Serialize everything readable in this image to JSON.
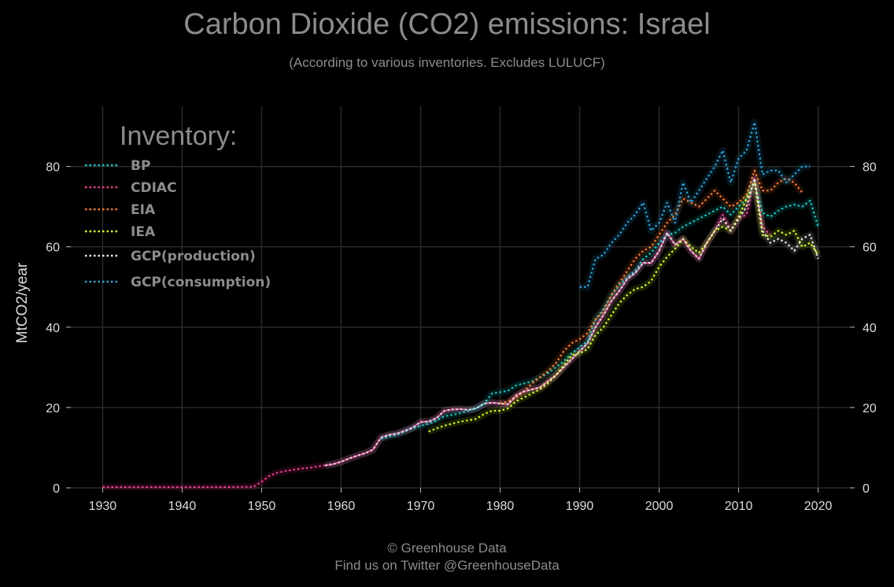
{
  "chart_data": {
    "type": "line",
    "title": "Carbon Dioxide (CO2) emissions: Israel",
    "subtitle": "(According to various inventories. Excludes LULUCF)",
    "ylabel": "MtCO2/year",
    "xlabel": "",
    "xlim": [
      1926,
      2024
    ],
    "ylim": [
      0,
      95
    ],
    "xticks": [
      1930,
      1940,
      1950,
      1960,
      1970,
      1980,
      1990,
      2000,
      2010,
      2020
    ],
    "yticks": [
      0,
      20,
      40,
      60,
      80
    ],
    "grid": true,
    "legend": {
      "title": "Inventory:",
      "placement": "top-left"
    },
    "series": [
      {
        "name": "CDIAC",
        "color": "#ff3399",
        "x": [
          1930,
          1935,
          1940,
          1945,
          1949,
          1950,
          1951,
          1952,
          1953,
          1954,
          1955,
          1956,
          1957,
          1958,
          1959,
          1960,
          1961,
          1962,
          1963,
          1964,
          1965,
          1966,
          1967,
          1968,
          1969,
          1970,
          1971,
          1972,
          1973,
          1974,
          1975,
          1976,
          1977,
          1978,
          1979,
          1980,
          1981,
          1982,
          1983,
          1984,
          1985,
          1986,
          1987,
          1988,
          1989,
          1990,
          1991,
          1992,
          1993,
          1994,
          1995,
          1996,
          1997,
          1998,
          1999,
          2000,
          2001,
          2002,
          2003,
          2004,
          2005,
          2006,
          2007,
          2008,
          2009,
          2010,
          2011,
          2012,
          2013,
          2014
        ],
        "y": [
          0.2,
          0.2,
          0.2,
          0.2,
          0.3,
          1.5,
          3,
          3.8,
          4.2,
          4.5,
          4.8,
          5.0,
          5.3,
          5.6,
          5.9,
          6.5,
          7.3,
          8,
          8.6,
          9.5,
          12.5,
          13.2,
          13.5,
          14.2,
          15.0,
          16.4,
          16.5,
          17.4,
          19.2,
          19.5,
          19.6,
          19.4,
          19.8,
          21.0,
          21.2,
          21,
          20.8,
          23,
          24,
          24.5,
          25,
          26.5,
          28,
          30,
          32,
          34,
          36,
          40,
          43,
          46.5,
          49,
          52,
          53.5,
          56,
          56,
          59,
          63.5,
          60.5,
          62,
          59,
          57,
          61,
          64,
          68,
          64,
          67,
          68,
          77,
          65,
          63
        ]
      },
      {
        "name": "BP",
        "color": "#00cccc",
        "x": [
          1965,
          1966,
          1967,
          1968,
          1969,
          1970,
          1971,
          1972,
          1973,
          1974,
          1975,
          1976,
          1977,
          1978,
          1979,
          1980,
          1981,
          1982,
          1983,
          1984,
          1985,
          1986,
          1987,
          1988,
          1989,
          1990,
          1991,
          1992,
          1993,
          1994,
          1995,
          1996,
          1997,
          1998,
          1999,
          2000,
          2001,
          2002,
          2003,
          2004,
          2005,
          2006,
          2007,
          2008,
          2009,
          2010,
          2011,
          2012,
          2013,
          2014,
          2015,
          2016,
          2017,
          2018,
          2019,
          2020
        ],
        "y": [
          12.2,
          12.8,
          13.2,
          14,
          14.8,
          15.4,
          16.0,
          16.8,
          17.8,
          18.2,
          18.6,
          19.2,
          19.8,
          21,
          23.5,
          23.8,
          24.2,
          25.5,
          26,
          26.5,
          27.5,
          28.5,
          30,
          31.5,
          33.5,
          35,
          36.5,
          42,
          44.5,
          48,
          50.5,
          52.5,
          54,
          57,
          58.5,
          61,
          63,
          63.5,
          65,
          66,
          67,
          68,
          69,
          70,
          68,
          70,
          72,
          76,
          68.5,
          67.5,
          69,
          70,
          70.5,
          70,
          71.5,
          65
        ]
      },
      {
        "name": "EIA",
        "color": "#ff7722",
        "x": [
          1980,
          1981,
          1982,
          1983,
          1984,
          1985,
          1986,
          1987,
          1988,
          1989,
          1990,
          1991,
          1992,
          1993,
          1994,
          1995,
          1996,
          1997,
          1998,
          1999,
          2000,
          2001,
          2002,
          2003,
          2004,
          2005,
          2006,
          2007,
          2008,
          2009,
          2010,
          2011,
          2012,
          2013,
          2014,
          2015,
          2016,
          2017,
          2018
        ],
        "y": [
          21,
          21.5,
          22.5,
          24,
          26,
          27.5,
          29,
          31,
          34,
          36,
          37,
          38.5,
          42,
          44,
          48,
          51,
          54,
          57,
          59,
          60,
          63,
          66,
          68,
          72,
          71,
          70,
          72,
          74,
          72,
          70,
          71,
          73,
          79,
          74,
          74,
          76,
          77,
          76,
          73.5
        ]
      },
      {
        "name": "IEA",
        "color": "#ccff00",
        "x": [
          1971,
          1972,
          1973,
          1974,
          1975,
          1976,
          1977,
          1978,
          1979,
          1980,
          1981,
          1982,
          1983,
          1984,
          1985,
          1986,
          1987,
          1988,
          1989,
          1990,
          1991,
          1992,
          1993,
          1994,
          1995,
          1996,
          1997,
          1998,
          1999,
          2000,
          2001,
          2002,
          2003,
          2004,
          2005,
          2006,
          2007,
          2008,
          2009,
          2010,
          2011,
          2012,
          2013,
          2014,
          2015,
          2016,
          2017,
          2018,
          2019,
          2020
        ],
        "y": [
          14,
          14.8,
          15.5,
          16,
          16.5,
          16.8,
          17.2,
          18.4,
          19.2,
          19.2,
          19.8,
          21.5,
          22.5,
          23.5,
          24.5,
          26,
          28,
          30.5,
          33,
          33.5,
          34.5,
          38,
          40,
          43,
          46,
          48,
          49.5,
          50,
          51.5,
          55,
          57.5,
          59.5,
          62,
          60,
          58.5,
          61,
          64,
          65,
          64,
          67.5,
          72,
          76,
          63,
          62.5,
          64,
          63,
          64,
          60,
          61,
          58
        ]
      },
      {
        "name": "GCP(production)",
        "color": "#e8e8e8",
        "x": [
          1958,
          1959,
          1960,
          1961,
          1962,
          1963,
          1964,
          1965,
          1966,
          1967,
          1968,
          1969,
          1970,
          1971,
          1972,
          1973,
          1974,
          1975,
          1976,
          1977,
          1978,
          1979,
          1980,
          1981,
          1982,
          1983,
          1984,
          1985,
          1986,
          1987,
          1988,
          1989,
          1990,
          1991,
          1992,
          1993,
          1994,
          1995,
          1996,
          1997,
          1998,
          1999,
          2000,
          2001,
          2002,
          2003,
          2004,
          2005,
          2006,
          2007,
          2008,
          2009,
          2010,
          2011,
          2012,
          2013,
          2014,
          2015,
          2016,
          2017,
          2018,
          2019,
          2020
        ],
        "y": [
          5.6,
          5.9,
          6.5,
          7.3,
          8,
          8.6,
          9.5,
          12.5,
          13.2,
          13.5,
          14.2,
          15,
          16.4,
          16.5,
          17.4,
          19.2,
          19.5,
          19.6,
          19.4,
          19.8,
          21,
          21.2,
          21,
          20.8,
          23,
          24,
          24.5,
          25,
          26.5,
          28,
          30,
          32,
          34,
          36,
          40,
          43,
          46.5,
          49,
          52,
          53.5,
          56,
          56,
          59,
          63.5,
          60.5,
          62,
          59,
          57,
          61,
          64,
          67,
          64,
          67,
          70,
          77,
          64,
          61,
          62,
          61,
          59,
          62,
          63,
          57
        ]
      },
      {
        "name": "GCP(consumption)",
        "color": "#1fa3e0",
        "x": [
          1990,
          1991,
          1992,
          1993,
          1994,
          1995,
          1996,
          1997,
          1998,
          1999,
          2000,
          2001,
          2002,
          2003,
          2004,
          2005,
          2006,
          2007,
          2008,
          2009,
          2010,
          2011,
          2012,
          2013,
          2014,
          2015,
          2016,
          2017,
          2018,
          2019
        ],
        "y": [
          50,
          50,
          57,
          58,
          61,
          63,
          66,
          68,
          71,
          64,
          66,
          71,
          66,
          76,
          71,
          74,
          77,
          80,
          84,
          76,
          82,
          84,
          91,
          78,
          79,
          79,
          76,
          78,
          80,
          80
        ]
      }
    ]
  },
  "footer": {
    "credit": "© Greenhouse Data",
    "twitter": "Find us on Twitter @GreenhouseData"
  }
}
